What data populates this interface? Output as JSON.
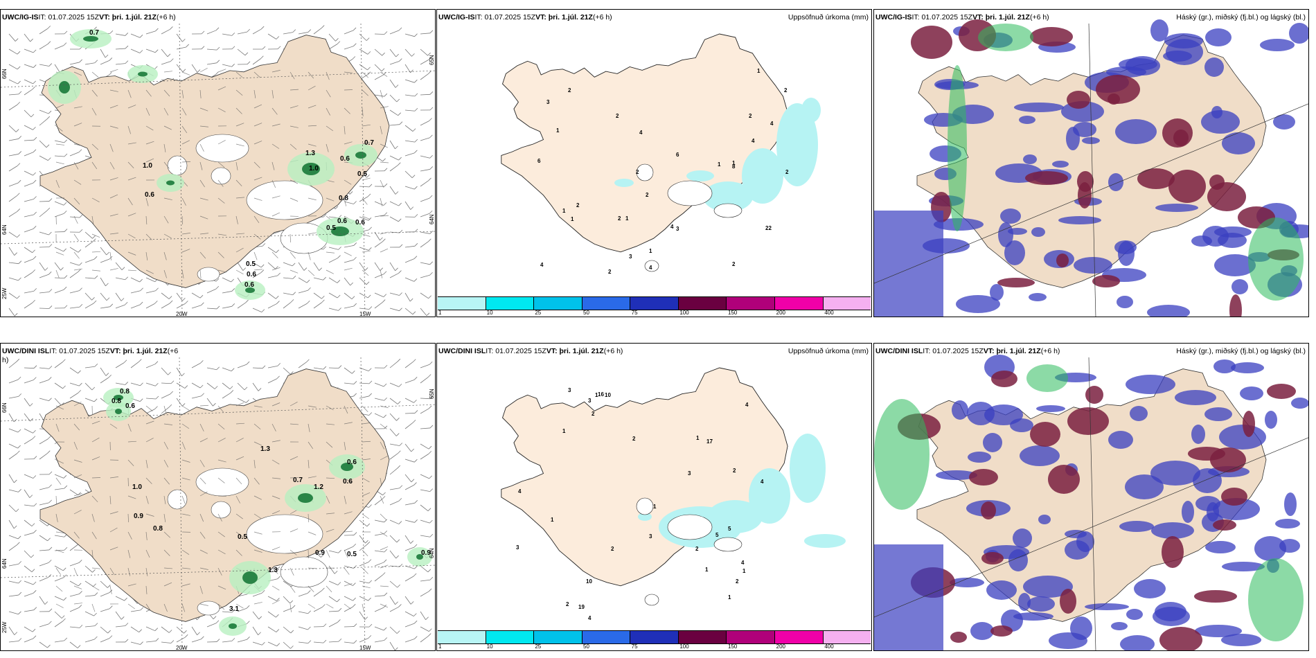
{
  "panels": [
    {
      "model": "UWC/IG-IS",
      "it": "IT: 01.07.2025 15Z",
      "vt": "VT: þri. 1.júl. 21Z",
      "lead": "(+6 h)",
      "title": "",
      "axis": {
        "lat1": "66N",
        "lat2": "64N",
        "lat3": "25W",
        "lon1": "20W",
        "lon2": "15W",
        "lat1r": "65N",
        "lat2r": "64N"
      },
      "labels": [
        "0.7",
        "1.0",
        "0.6",
        "1.3",
        "1.0",
        "0.6",
        "0.7",
        "0.5",
        "0.8",
        "0.6",
        "0.5",
        "0.6",
        "0.5",
        "0.6",
        "0.6"
      ]
    },
    {
      "model": "UWC/IG-IS",
      "it": "IT: 01.07.2025 15Z",
      "vt": "VT: þri. 1.júl. 21Z",
      "lead": "(+6 h)",
      "title": "Uppsöfnuð úrkoma (mm)",
      "labels": [
        "1",
        "2",
        "1",
        "2",
        "1",
        "2",
        "2",
        "1",
        "1",
        "2",
        "1",
        "2",
        "2",
        "4",
        "4",
        "2",
        "3",
        "4",
        "6",
        "6",
        "4",
        "3",
        "2",
        "8",
        "2",
        "22",
        "3",
        "1",
        "1",
        "2",
        "4",
        "4"
      ]
    },
    {
      "model": "UWC/IG-IS",
      "it": "IT: 01.07.2025 15Z",
      "vt": "VT: þri. 1.júl. 21Z",
      "lead": "(+6 h)",
      "title": "Háský (gr.), miðský (fj.bl.) og lágský (bl.)"
    },
    {
      "model": "UWC/DINI ISL",
      "it": "IT: 01.07.2025 15Z",
      "vt": "VT: þri. 1.júl. 21Z",
      "lead": "(+6 h)",
      "title": "",
      "axis": {
        "lat1": "66N",
        "lat2": "64N",
        "lat3": "25W",
        "lon1": "20W",
        "lon2": "15W",
        "lat1r": "65N",
        "lat2r": "64N"
      },
      "labels": [
        "0.8",
        "0.8",
        "0.6",
        "1.0",
        "0.9",
        "0.8",
        "1.3",
        "0.7",
        "1.2",
        "0.6",
        "0.6",
        "0.5",
        "1.3",
        "0.9",
        "0.5",
        "0.9",
        "3.1"
      ]
    },
    {
      "model": "UWC/DINI ISL",
      "it": "IT: 01.07.2025 15Z",
      "vt": "VT: þri. 1.júl. 21Z",
      "lead": "(+6 h)",
      "title": "Uppsöfnuð úrkoma (mm)",
      "labels": [
        "2",
        "1",
        "2",
        "1",
        "1",
        "2",
        "1",
        "4",
        "3",
        "1",
        "2",
        "3",
        "4",
        "5",
        "3",
        "4",
        "4",
        "3",
        "2",
        "4",
        "2",
        "16",
        "19",
        "17",
        "5",
        "3",
        "10",
        "10",
        "1",
        "2",
        "1",
        "1"
      ]
    },
    {
      "model": "UWC/DINI ISL",
      "it": "IT: 01.07.2025 15Z",
      "vt": "VT: þri. 1.júl. 21Z",
      "lead": "(+6 h)",
      "title": "Háský (gr.), miðský (fj.bl.) og lágský (bl.)"
    }
  ],
  "colorbar": {
    "labels": [
      "1",
      "10",
      "25",
      "50",
      "75",
      "100",
      "150",
      "200",
      "400"
    ],
    "colors": [
      "#b8f5f5",
      "#00e8f0",
      "#00c2ea",
      "#2a6ae8",
      "#1f2fb8",
      "#6a0040",
      "#b0007a",
      "#f000a8",
      "#f5b0f0"
    ]
  },
  "colors": {
    "land": "#f0ddc8",
    "precip": "#b6f3f3",
    "green": "#2dbb5c",
    "high": "#5a9a60",
    "mid": "#7a2040",
    "low": "#3a3fc0"
  }
}
